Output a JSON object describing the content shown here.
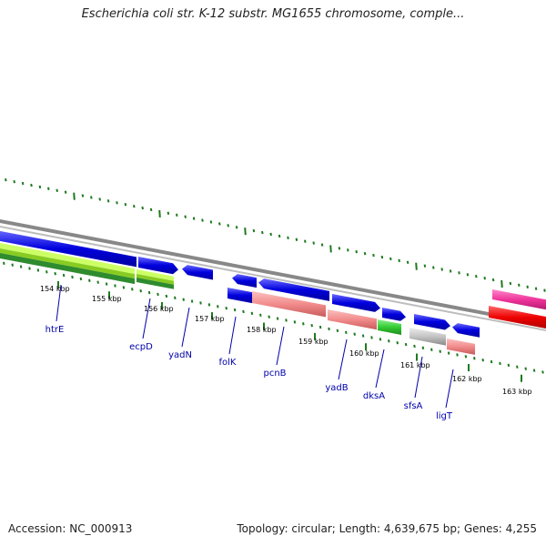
{
  "map": {
    "title": "Escherichia coli str. K-12 substr. MG1655 chromosome, comple...",
    "accession_text": "Accession: NC_000913",
    "summary_text": "Topology: circular; Length: 4,639,675 bp; Genes: 4,255"
  },
  "colors": {
    "backbone": "#888888",
    "tick": "#1f7a1f",
    "tick_label": "#000000",
    "gene_forward": "#0000dd",
    "gene_reverse": "#0000dd",
    "rrna": "#f28c8c",
    "trna": "#33cc33",
    "other": "#c0c0c0",
    "phage": "#ee3399",
    "mobile": "#ee0000",
    "lightgreen": "#ccff66",
    "darkgreen": "#2e8b2e",
    "gene_label": "#0000aa"
  },
  "ruler": {
    "labels": [
      "154 kbp",
      "155 kbp",
      "156 kbp",
      "157 kbp",
      "158 kbp",
      "159 kbp",
      "160 kbp",
      "161 kbp",
      "162 kbp",
      "163 kbp"
    ]
  },
  "genes": [
    {
      "name": "htrE"
    },
    {
      "name": "ecpD"
    },
    {
      "name": "yadN"
    },
    {
      "name": "folK"
    },
    {
      "name": "pcnB"
    },
    {
      "name": "yadB"
    },
    {
      "name": "dksA"
    },
    {
      "name": "sfsA"
    },
    {
      "name": "ligT"
    }
  ]
}
